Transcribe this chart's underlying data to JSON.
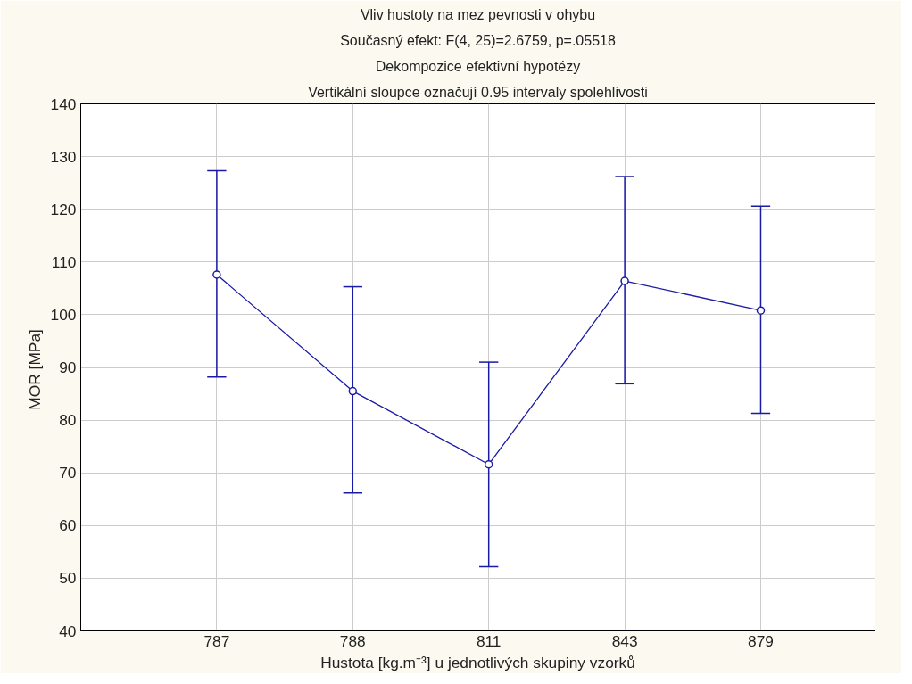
{
  "chart_data": {
    "type": "line",
    "title": "Vliv hustoty na mez pevnosti v ohybu",
    "subtitle": "Současný efekt: F(4, 25)=2.6759, p=.05518",
    "annotations": [
      "Dekompozice efektivní hypotézy",
      "Vertikální sloupce označují 0.95 intervaly spolehlivosti"
    ],
    "xlabel": "Hustota [kg.m⁻³] u jednotlivých skupiny vzorků",
    "ylabel": "MOR  [MPa]",
    "categories": [
      "787",
      "788",
      "811",
      "843",
      "879"
    ],
    "series": [
      {
        "color": "#1a1aa6",
        "values": [
          107.6,
          85.5,
          71.6,
          106.4,
          100.8
        ],
        "errors": [
          [
            88.2,
            127.3
          ],
          [
            66.2,
            105.3
          ],
          [
            52.2,
            91.0
          ],
          [
            86.9,
            126.2
          ],
          [
            81.3,
            120.6
          ]
        ]
      }
    ],
    "ylim": [
      40,
      140
    ],
    "yticks": [
      40,
      50,
      60,
      70,
      80,
      90,
      100,
      110,
      120,
      130,
      140
    ],
    "grid": true,
    "marker": "circle",
    "line_style": "solid"
  }
}
